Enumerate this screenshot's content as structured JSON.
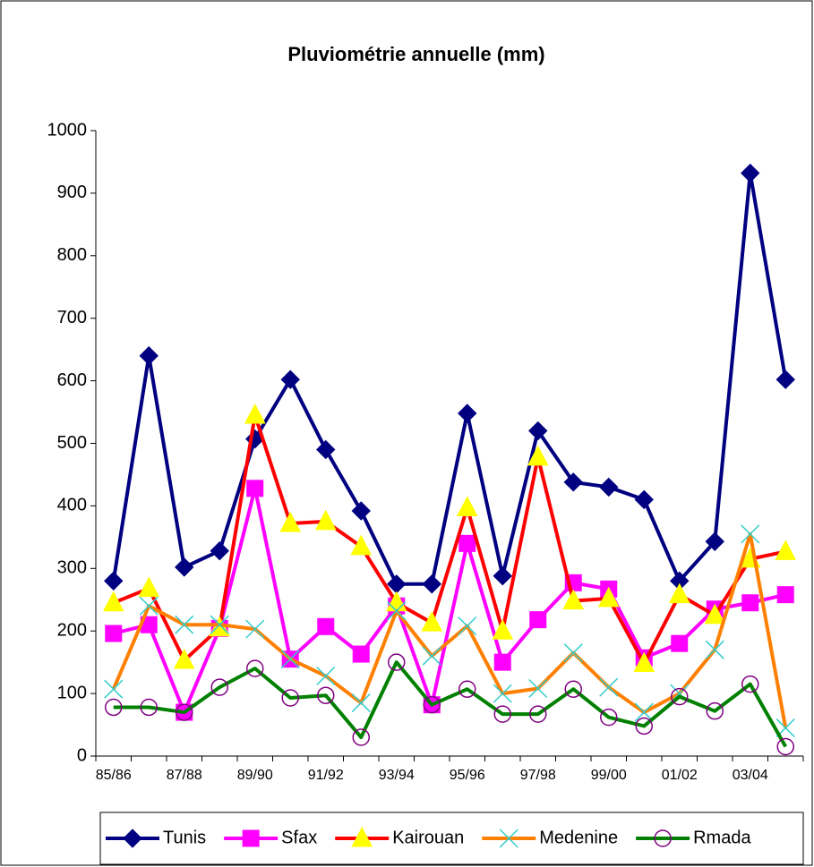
{
  "chart_data": {
    "type": "line",
    "title": "Pluviométrie annuelle (mm)",
    "categories": [
      "85/86",
      null,
      "87/88",
      null,
      "89/90",
      null,
      "91/92",
      null,
      "93/94",
      null,
      "95/96",
      null,
      "97/98",
      null,
      "99/00",
      null,
      "01/02",
      null,
      "03/04",
      null
    ],
    "series": [
      {
        "name": "Tunis",
        "color": "#000080",
        "marker": "diamond",
        "marker_color": "#000080",
        "values": [
          280,
          640,
          302,
          328,
          507,
          602,
          490,
          392,
          275,
          275,
          548,
          288,
          520,
          438,
          430,
          410,
          280,
          343,
          932,
          602
        ]
      },
      {
        "name": "Sfax",
        "color": "#ff00ff",
        "marker": "square",
        "marker_color": "#ff00ff",
        "values": [
          196,
          210,
          70,
          204,
          428,
          155,
          207,
          163,
          240,
          82,
          340,
          150,
          218,
          277,
          267,
          157,
          180,
          235,
          245,
          258
        ]
      },
      {
        "name": "Kairouan",
        "color": "#ff0000",
        "marker": "triangle",
        "marker_color": "#ffff00",
        "values": [
          245,
          268,
          153,
          205,
          545,
          372,
          375,
          335,
          245,
          213,
          397,
          200,
          478,
          248,
          252,
          148,
          258,
          225,
          315,
          327
        ]
      },
      {
        "name": "Medenine",
        "color": "#ff8000",
        "marker": "x",
        "marker_color": "#33cccc",
        "values": [
          107,
          240,
          210,
          210,
          203,
          155,
          128,
          85,
          232,
          160,
          208,
          100,
          108,
          165,
          110,
          70,
          100,
          170,
          355,
          45
        ]
      },
      {
        "name": "Rmada",
        "color": "#008000",
        "marker": "circle",
        "marker_color": "#800080",
        "values": [
          78,
          78,
          70,
          110,
          140,
          93,
          97,
          30,
          150,
          82,
          107,
          67,
          67,
          107,
          62,
          48,
          95,
          72,
          115,
          15
        ]
      }
    ],
    "ylim": [
      0,
      1000
    ],
    "yticks": [
      0,
      100,
      200,
      300,
      400,
      500,
      600,
      700,
      800,
      900,
      1000
    ],
    "grid": false,
    "legend": "bottom"
  }
}
